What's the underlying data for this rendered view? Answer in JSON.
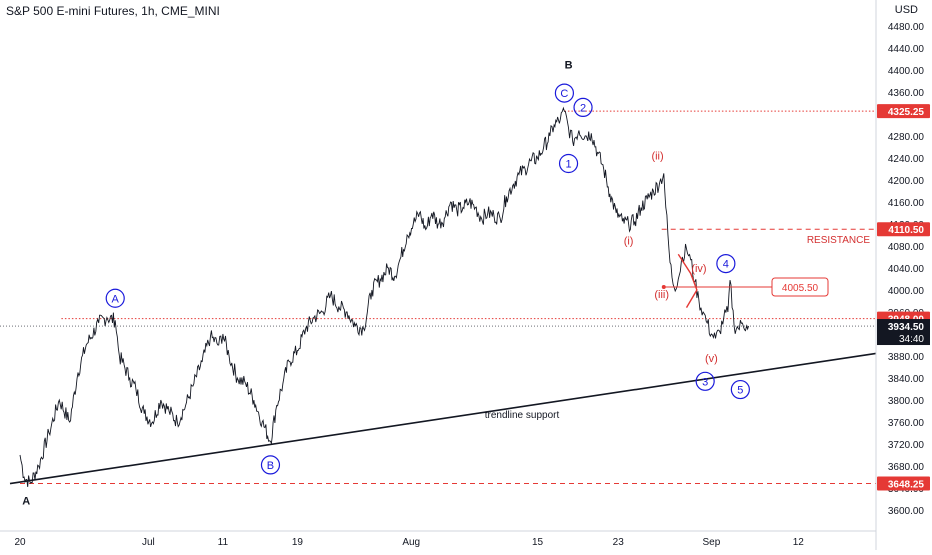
{
  "header": {
    "title": "S&P 500 E-mini Futures, 1h, CME_MINI",
    "currency": "USD"
  },
  "chart_data": {
    "type": "line",
    "title": "S&P 500 E-mini Futures, 1h, CME_MINI",
    "ylim": [
      3580,
      4520
    ],
    "y_ticks": [
      3600,
      3640,
      3680,
      3720,
      3760,
      3800,
      3840,
      3880,
      3920,
      3960,
      4000,
      4040,
      4080,
      4120,
      4160,
      4200,
      4240,
      4280,
      4320,
      4360,
      4400,
      4440,
      4480
    ],
    "x_ticks": [
      {
        "label": "20",
        "i": 0
      },
      {
        "label": "Jul",
        "i": 62
      },
      {
        "label": "11",
        "i": 98
      },
      {
        "label": "19",
        "i": 134
      },
      {
        "label": "Aug",
        "i": 189
      },
      {
        "label": "15",
        "i": 250
      },
      {
        "label": "23",
        "i": 289
      },
      {
        "label": "Sep",
        "i": 334
      },
      {
        "label": "12",
        "i": 376
      }
    ],
    "price_anchors": [
      [
        0,
        3700
      ],
      [
        2,
        3660
      ],
      [
        5,
        3649
      ],
      [
        9,
        3680
      ],
      [
        14,
        3740
      ],
      [
        19,
        3800
      ],
      [
        24,
        3760
      ],
      [
        28,
        3850
      ],
      [
        32,
        3900
      ],
      [
        38,
        3940
      ],
      [
        42,
        3950
      ],
      [
        46,
        3945
      ],
      [
        48,
        3880
      ],
      [
        53,
        3840
      ],
      [
        56,
        3820
      ],
      [
        60,
        3775
      ],
      [
        64,
        3760
      ],
      [
        68,
        3800
      ],
      [
        72,
        3780
      ],
      [
        76,
        3760
      ],
      [
        80,
        3790
      ],
      [
        84,
        3830
      ],
      [
        88,
        3870
      ],
      [
        92,
        3915
      ],
      [
        96,
        3900
      ],
      [
        98,
        3920
      ],
      [
        101,
        3880
      ],
      [
        105,
        3840
      ],
      [
        109,
        3830
      ],
      [
        113,
        3800
      ],
      [
        117,
        3760
      ],
      [
        121,
        3725
      ],
      [
        124,
        3790
      ],
      [
        127,
        3830
      ],
      [
        130,
        3870
      ],
      [
        134,
        3890
      ],
      [
        138,
        3930
      ],
      [
        142,
        3950
      ],
      [
        146,
        3960
      ],
      [
        150,
        3990
      ],
      [
        154,
        3970
      ],
      [
        158,
        3960
      ],
      [
        162,
        3935
      ],
      [
        166,
        3930
      ],
      [
        170,
        4000
      ],
      [
        174,
        4020
      ],
      [
        178,
        4040
      ],
      [
        181,
        4025
      ],
      [
        184,
        4060
      ],
      [
        187,
        4100
      ],
      [
        190,
        4120
      ],
      [
        193,
        4140
      ],
      [
        196,
        4110
      ],
      [
        199,
        4140
      ],
      [
        202,
        4120
      ],
      [
        205,
        4130
      ],
      [
        208,
        4160
      ],
      [
        211,
        4145
      ],
      [
        214,
        4150
      ],
      [
        217,
        4160
      ],
      [
        220,
        4150
      ],
      [
        223,
        4130
      ],
      [
        226,
        4140
      ],
      [
        229,
        4135
      ],
      [
        232,
        4130
      ],
      [
        235,
        4170
      ],
      [
        238,
        4190
      ],
      [
        241,
        4210
      ],
      [
        244,
        4220
      ],
      [
        247,
        4235
      ],
      [
        250,
        4240
      ],
      [
        253,
        4260
      ],
      [
        256,
        4280
      ],
      [
        258,
        4300
      ],
      [
        261,
        4310
      ],
      [
        263,
        4325
      ],
      [
        265,
        4295
      ],
      [
        267,
        4270
      ],
      [
        270,
        4290
      ],
      [
        273,
        4280
      ],
      [
        276,
        4285
      ],
      [
        279,
        4250
      ],
      [
        282,
        4220
      ],
      [
        285,
        4175
      ],
      [
        288,
        4140
      ],
      [
        291,
        4125
      ],
      [
        294,
        4120
      ],
      [
        297,
        4125
      ],
      [
        300,
        4150
      ],
      [
        303,
        4165
      ],
      [
        306,
        4180
      ],
      [
        309,
        4195
      ],
      [
        311,
        4212
      ],
      [
        312,
        4150
      ],
      [
        314,
        4050
      ],
      [
        316,
        4005
      ],
      [
        318,
        4020
      ],
      [
        320,
        4060
      ],
      [
        322,
        4075
      ],
      [
        324,
        4055
      ],
      [
        326,
        4015
      ],
      [
        328,
        3980
      ],
      [
        330,
        3960
      ],
      [
        332,
        3940
      ],
      [
        334,
        3920
      ],
      [
        336,
        3912
      ],
      [
        338,
        3925
      ],
      [
        340,
        3950
      ],
      [
        342,
        3960
      ],
      [
        343,
        4018
      ],
      [
        345,
        3935
      ],
      [
        347,
        3930
      ],
      [
        349,
        3940
      ],
      [
        351,
        3935
      ],
      [
        352,
        3934.5
      ]
    ],
    "horizontal_levels": [
      {
        "value": 4325.25,
        "label": "4325.25",
        "style": "dotted",
        "color": "#e53935",
        "from_i": 263
      },
      {
        "value": 4110.5,
        "label": "4110.50",
        "style": "dashed",
        "color": "#e53935",
        "from_i": 310
      },
      {
        "value": 3948.0,
        "label": "3948.00",
        "style": "dotted",
        "color": "#e53935",
        "from_i": 20
      },
      {
        "value": 3648.25,
        "label": "3648.25",
        "style": "dashed",
        "color": "#e53935",
        "from_i": 0
      }
    ],
    "last_price": {
      "value": 3934.5,
      "label": "3934.50",
      "countdown": "34:40"
    },
    "resistance_label": "RESISTANCE",
    "trendline": {
      "label": "trendline support",
      "from": [
        0,
        3648
      ],
      "to": [
        410,
        3880
      ]
    },
    "waves": [
      {
        "label": "A",
        "i": 46,
        "price": 3985,
        "circle": true,
        "color": "#1a1adb"
      },
      {
        "label": "B",
        "i": 121,
        "price": 3682,
        "circle": true,
        "color": "#1a1adb"
      },
      {
        "label": "C",
        "i": 263,
        "price": 4358,
        "circle": true,
        "color": "#1a1adb"
      },
      {
        "label": "1",
        "i": 265,
        "price": 4230,
        "circle": true,
        "color": "#1a1adb"
      },
      {
        "label": "2",
        "i": 272,
        "price": 4332,
        "circle": true,
        "color": "#1a1adb"
      },
      {
        "label": "3",
        "i": 331,
        "price": 3834,
        "circle": true,
        "color": "#1a1adb"
      },
      {
        "label": "4",
        "i": 341,
        "price": 4048,
        "circle": true,
        "color": "#1a1adb"
      },
      {
        "label": "5",
        "i": 348,
        "price": 3819,
        "circle": true,
        "color": "#1a1adb"
      },
      {
        "label": "(i)",
        "i": 294,
        "price": 4090,
        "circle": false,
        "color": "#d32f2f"
      },
      {
        "label": "(ii)",
        "i": 308,
        "price": 4245,
        "circle": false,
        "color": "#d32f2f"
      },
      {
        "label": "(iii)",
        "i": 310,
        "price": 3993,
        "circle": false,
        "color": "#d32f2f"
      },
      {
        "label": "(iv)",
        "i": 328,
        "price": 4040,
        "circle": false,
        "color": "#d32f2f"
      },
      {
        "label": "(v)",
        "i": 334,
        "price": 3876,
        "circle": false,
        "color": "#d32f2f"
      },
      {
        "label": "B",
        "i": 265,
        "price": 4410,
        "circle": false,
        "color": "#131722"
      },
      {
        "label": "A",
        "i": 3,
        "price": 3617,
        "circle": false,
        "color": "#131722"
      }
    ],
    "annotation_box": {
      "label": "4005.50",
      "value": 4005.5,
      "i": 311
    }
  }
}
